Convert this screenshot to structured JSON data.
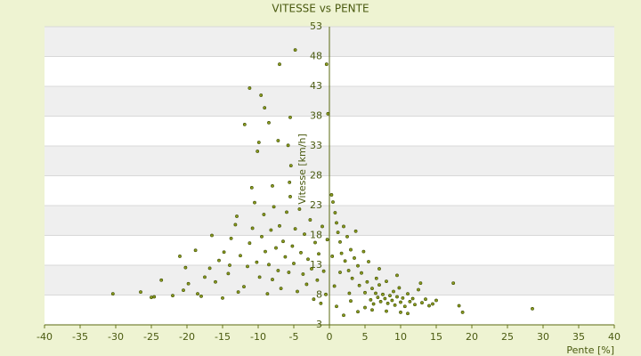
{
  "chart_data": {
    "type": "scatter",
    "title": "VITESSE vs PENTE",
    "x_label": "Pente [%]",
    "y_label": "Vitesse [km/h]",
    "color": "#8a9a1e",
    "xlim": [
      -40,
      40
    ],
    "xticks": [
      -40,
      -35,
      -30,
      -25,
      -20,
      -15,
      -10,
      -5,
      0,
      5,
      10,
      15,
      20,
      25,
      30,
      35,
      40
    ],
    "ylim": [
      3,
      53
    ],
    "yticks": [
      3,
      8,
      13,
      18,
      23,
      28,
      33,
      38,
      43,
      48,
      53
    ],
    "grid": true,
    "x": [
      -4.8,
      -7,
      -0.4,
      -11.2,
      -9.6,
      -9.1,
      -0.2,
      -5.5,
      -11.9,
      -8.5,
      -9.9,
      -10.1,
      -7.2,
      -5.8,
      -5.4,
      -8,
      -5.6,
      -10.9,
      -24.6,
      -22,
      -20.5,
      -19.8,
      -18.5,
      -18,
      -17.5,
      -16.8,
      -16,
      -15.5,
      -14.8,
      -14.2,
      -13.8,
      -13.2,
      -13,
      -12.5,
      -12,
      -11.5,
      -11.2,
      -10.8,
      -10.5,
      -10.2,
      -9.8,
      -9.5,
      -9.2,
      -9,
      -8.7,
      -8.5,
      -8.2,
      -8,
      -7.8,
      -7.5,
      -7.2,
      -7,
      -6.8,
      -6.5,
      -6.2,
      -6,
      -5.7,
      -5.5,
      -5.2,
      -5,
      -4.8,
      -4.5,
      -4.2,
      -4,
      -3.7,
      -3.5,
      -3.2,
      -3,
      -2.7,
      -2.5,
      -2.2,
      -2,
      -1.7,
      -1.5,
      -1.2,
      -1,
      -0.8,
      -0.5,
      -0.3,
      -20.2,
      -21,
      -18.8,
      -16.5,
      -15,
      -12.8,
      -14,
      0.3,
      0.5,
      0.8,
      1,
      1.2,
      1.5,
      1.7,
      2,
      2.2,
      2.5,
      2.7,
      3,
      3.2,
      3.5,
      3.7,
      4,
      4.2,
      4.5,
      4.8,
      5,
      5.3,
      5.5,
      5.8,
      6,
      6.2,
      6.5,
      6.8,
      7,
      7.2,
      7.5,
      7.8,
      8,
      8.2,
      8.5,
      8.8,
      9,
      9.2,
      9.5,
      9.8,
      10,
      10.3,
      10.6,
      11,
      11.3,
      11.7,
      12,
      12.5,
      13,
      13.5,
      14,
      14.5,
      7,
      4,
      2,
      1,
      0.7,
      3,
      5,
      6,
      8,
      10,
      11,
      9.5,
      12.8,
      15,
      17.4,
      18.2,
      18.7,
      28.5,
      1.5,
      2.8,
      0.4,
      6.6,
      -30.4,
      -26.5,
      -23.6,
      -25
    ],
    "values": [
      49.1,
      46.7,
      46.7,
      42.7,
      41.5,
      39.4,
      38.4,
      37.8,
      36.6,
      36.9,
      33.6,
      32.1,
      33.9,
      33.1,
      29.7,
      26.3,
      26.9,
      26,
      7.7,
      7.9,
      8.8,
      9.9,
      8.2,
      7.8,
      11,
      12.5,
      10.2,
      13.8,
      15.2,
      11.6,
      17.5,
      19.8,
      21.2,
      14.6,
      9.4,
      12.8,
      16.7,
      19.2,
      23.5,
      13.5,
      11,
      17.8,
      21.5,
      15.3,
      8.2,
      13.1,
      18.9,
      10.6,
      22.8,
      15.9,
      12.1,
      19.6,
      9.1,
      17,
      14.4,
      21.9,
      11.8,
      24.5,
      16.2,
      13.3,
      19.1,
      8.6,
      22.4,
      15.1,
      11.5,
      18.2,
      9.8,
      14,
      20.6,
      12.4,
      7.3,
      16.8,
      10.5,
      14.9,
      6.6,
      19.5,
      12,
      8.1,
      17.3,
      12.6,
      14.5,
      15.5,
      18,
      7.5,
      8.5,
      13,
      24.8,
      23.6,
      21.8,
      20.1,
      18.5,
      16.9,
      15,
      19.5,
      13.7,
      17.8,
      12.1,
      15.6,
      10.8,
      14.2,
      18.7,
      12.9,
      9.6,
      11.7,
      15.3,
      8.4,
      10.2,
      13.6,
      7.2,
      9.1,
      6.5,
      8.3,
      7.6,
      9.7,
      6.9,
      8.1,
      7.4,
      10.3,
      6.6,
      7.9,
      7.1,
      8.6,
      6.3,
      7.7,
      9.2,
      6.8,
      7.5,
      6.1,
      8.2,
      6.9,
      7.4,
      6.4,
      8.9,
      6.7,
      7.3,
      6.2,
      6.5,
      12.4,
      5.2,
      4.6,
      6.1,
      9.5,
      7,
      5.9,
      5.5,
      5.3,
      5.1,
      4.9,
      11.3,
      10,
      7.1,
      10,
      6.2,
      5.1,
      5.7,
      11.8,
      8.3,
      14.5,
      10.8,
      8.2,
      8.5,
      10.5,
      7.6
    ]
  }
}
